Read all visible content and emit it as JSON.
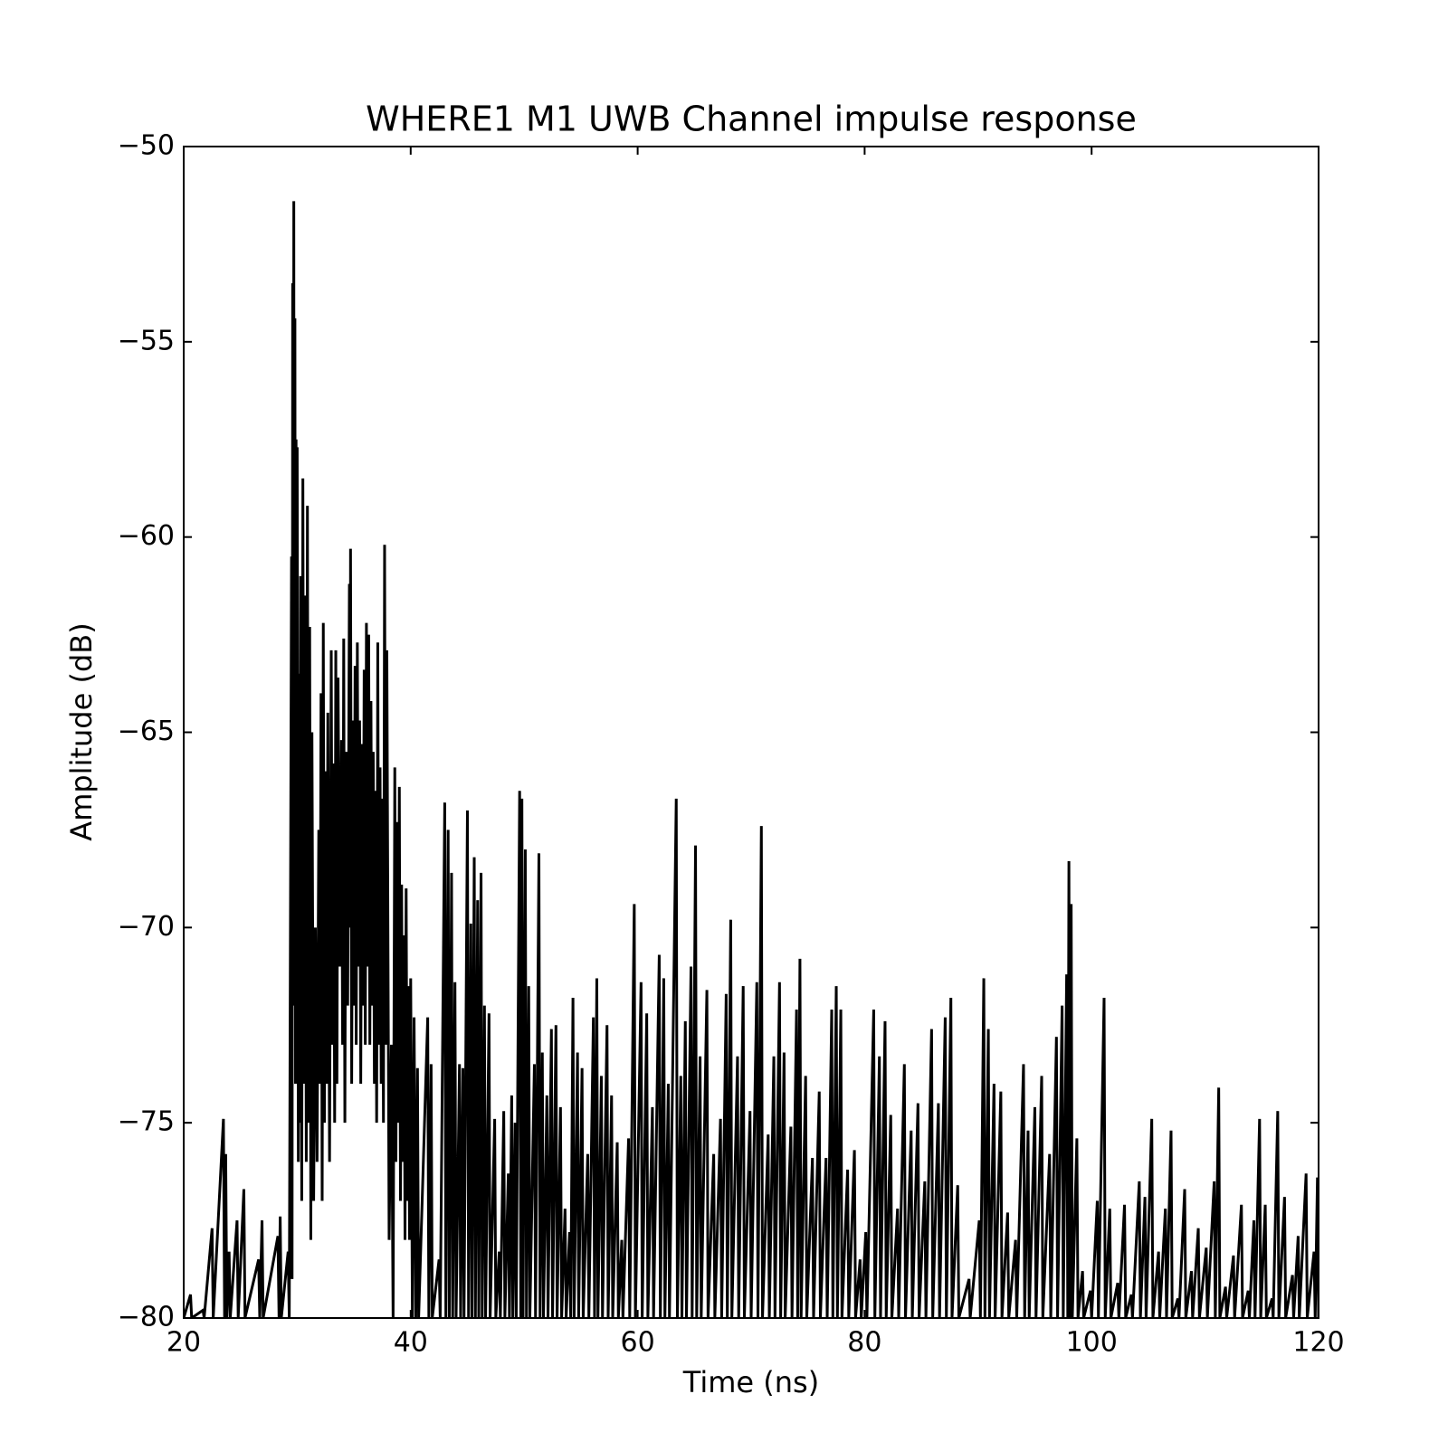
{
  "chart_data": {
    "type": "line",
    "title": "WHERE1 M1 UWB Channel impulse response",
    "x_label": "Time (ns)",
    "y_label": "Amplitude (dB)",
    "xlim": [
      20,
      120
    ],
    "ylim": [
      -80,
      -50
    ],
    "xticks": [
      20,
      40,
      60,
      80,
      100,
      120
    ],
    "yticks": [
      {
        "value": -50,
        "label": "−50"
      },
      {
        "value": -55,
        "label": "−55"
      },
      {
        "value": -60,
        "label": "−60"
      },
      {
        "value": -65,
        "label": "−65"
      },
      {
        "value": -70,
        "label": "−70"
      },
      {
        "value": -75,
        "label": "−75"
      },
      {
        "value": -80,
        "label": "−80"
      }
    ],
    "grid": false,
    "x": [
      20.0,
      20.6,
      20.7,
      21.7,
      21.8,
      22.5,
      22.6,
      23.5,
      23.6,
      23.7,
      23.8,
      24.0,
      24.1,
      24.7,
      24.8,
      25.3,
      25.4,
      26.6,
      26.7,
      26.9,
      27.0,
      28.3,
      28.4,
      28.5,
      28.6,
      29.2,
      29.3,
      29.5,
      29.55,
      29.6,
      29.65,
      29.7,
      29.75,
      29.8,
      29.85,
      29.9,
      29.95,
      30.0,
      30.1,
      30.2,
      30.25,
      30.3,
      30.4,
      30.5,
      30.6,
      30.7,
      30.8,
      30.9,
      31.0,
      31.1,
      31.2,
      31.3,
      31.45,
      31.6,
      31.75,
      31.9,
      32.0,
      32.1,
      32.2,
      32.3,
      32.4,
      32.5,
      32.6,
      32.7,
      32.85,
      33.0,
      33.1,
      33.2,
      33.3,
      33.4,
      33.5,
      33.6,
      33.75,
      33.9,
      34.0,
      34.1,
      34.2,
      34.3,
      34.45,
      34.6,
      34.65,
      34.7,
      34.8,
      34.9,
      35.0,
      35.1,
      35.2,
      35.3,
      35.4,
      35.5,
      35.6,
      35.7,
      35.8,
      35.9,
      36.0,
      36.1,
      36.2,
      36.3,
      36.4,
      36.5,
      36.6,
      36.7,
      36.8,
      36.9,
      37.0,
      37.1,
      37.2,
      37.3,
      37.4,
      37.5,
      37.6,
      37.7,
      37.8,
      37.9,
      38.1,
      38.3,
      38.45,
      38.6,
      38.7,
      38.8,
      38.9,
      39.0,
      39.1,
      39.2,
      39.3,
      39.4,
      39.5,
      39.6,
      39.7,
      39.8,
      39.9,
      40.0,
      40.15,
      40.3,
      40.45,
      40.6,
      40.7,
      41.5,
      41.6,
      41.8,
      41.9,
      42.5,
      42.6,
      43.0,
      43.1,
      43.3,
      43.4,
      43.6,
      43.7,
      43.9,
      44.0,
      44.3,
      44.4,
      44.6,
      44.7,
      45.0,
      45.1,
      45.3,
      45.4,
      45.6,
      45.7,
      45.9,
      46.0,
      46.2,
      46.3,
      46.5,
      46.6,
      46.9,
      47.0,
      47.4,
      47.5,
      47.8,
      47.9,
      48.2,
      48.3,
      48.6,
      48.7,
      48.9,
      49.0,
      49.2,
      49.3,
      49.6,
      49.7,
      49.8,
      49.9,
      50.1,
      50.2,
      50.4,
      50.5,
      50.9,
      51.0,
      51.3,
      51.4,
      51.6,
      51.7,
      52.0,
      52.1,
      52.4,
      52.5,
      52.8,
      52.9,
      53.2,
      53.3,
      53.6,
      53.7,
      54.0,
      54.1,
      54.3,
      54.4,
      54.7,
      54.8,
      55.1,
      55.2,
      55.6,
      55.7,
      56.1,
      56.2,
      56.4,
      56.5,
      56.8,
      56.9,
      57.3,
      57.4,
      57.7,
      57.8,
      58.2,
      58.3,
      58.6,
      58.7,
      59.2,
      59.3,
      59.7,
      59.8,
      60.3,
      60.4,
      60.8,
      60.9,
      61.3,
      61.4,
      61.9,
      62.0,
      62.3,
      62.4,
      62.7,
      62.8,
      63.4,
      63.5,
      63.8,
      63.9,
      64.2,
      64.3,
      64.7,
      64.8,
      65.1,
      65.2,
      65.5,
      65.6,
      66.1,
      66.2,
      66.7,
      66.8,
      67.3,
      67.4,
      67.8,
      67.9,
      68.2,
      68.3,
      68.8,
      68.9,
      69.3,
      69.4,
      69.9,
      70.0,
      70.5,
      70.6,
      70.9,
      71.0,
      71.5,
      71.6,
      72.0,
      72.1,
      72.5,
      72.6,
      72.9,
      73.0,
      73.5,
      73.6,
      74.0,
      74.1,
      74.3,
      74.4,
      74.8,
      74.9,
      75.4,
      75.5,
      76.0,
      76.1,
      76.6,
      76.7,
      77.1,
      77.2,
      77.5,
      77.6,
      77.9,
      78.0,
      78.5,
      78.6,
      79.1,
      79.2,
      79.6,
      79.7,
      80.1,
      80.2,
      80.8,
      80.9,
      81.3,
      81.4,
      81.8,
      81.9,
      82.3,
      82.4,
      82.9,
      83.0,
      83.5,
      83.6,
      84.1,
      84.2,
      84.7,
      84.8,
      85.3,
      85.4,
      85.9,
      86.0,
      86.5,
      86.6,
      87.1,
      87.2,
      87.6,
      87.7,
      88.2,
      88.3,
      89.2,
      89.3,
      90.1,
      90.2,
      90.5,
      90.6,
      90.9,
      91.0,
      91.4,
      91.5,
      92.0,
      92.1,
      92.6,
      92.7,
      93.3,
      93.4,
      94.0,
      94.1,
      94.4,
      94.5,
      95.0,
      95.1,
      95.6,
      95.7,
      96.3,
      96.4,
      96.9,
      97.0,
      97.4,
      97.5,
      97.8,
      97.9,
      98.0,
      98.1,
      98.2,
      98.3,
      98.7,
      98.8,
      99.2,
      99.3,
      99.9,
      100.0,
      100.5,
      100.6,
      101.1,
      101.2,
      101.6,
      101.7,
      102.3,
      102.4,
      102.9,
      103.0,
      103.5,
      103.6,
      104.2,
      104.3,
      104.7,
      104.8,
      105.3,
      105.4,
      105.9,
      106.0,
      106.5,
      106.6,
      107.0,
      107.1,
      107.6,
      107.7,
      108.2,
      108.3,
      108.8,
      108.9,
      109.4,
      109.5,
      110.1,
      110.2,
      110.8,
      110.9,
      111.2,
      111.3,
      111.8,
      111.9,
      112.5,
      112.6,
      113.2,
      113.3,
      113.8,
      113.9,
      114.3,
      114.4,
      114.8,
      114.9,
      115.3,
      115.4,
      115.9,
      116.0,
      116.4,
      116.5,
      117.0,
      117.1,
      117.7,
      117.8,
      118.2,
      118.3,
      118.9,
      119.0,
      119.6,
      119.7,
      119.9,
      120.0
    ],
    "series": [
      {
        "color": "#000000",
        "values": [
          -80,
          -79.4,
          -80,
          -79.8,
          -80,
          -77.7,
          -80,
          -74.9,
          -80,
          -75.8,
          -80,
          -78.3,
          -80,
          -77.5,
          -80,
          -76.7,
          -80,
          -78.5,
          -80,
          -77.5,
          -80,
          -77.9,
          -80,
          -77.4,
          -80,
          -78.3,
          -80,
          -60.5,
          -79,
          -53.5,
          -70,
          -51.4,
          -72,
          -54.4,
          -74,
          -57.5,
          -72,
          -57.7,
          -76,
          -63.5,
          -75,
          -61,
          -77,
          -58.5,
          -74,
          -61.5,
          -76,
          -59.2,
          -75,
          -62.3,
          -78,
          -65,
          -77,
          -70,
          -76,
          -67.5,
          -74,
          -64,
          -77,
          -62.2,
          -75,
          -66,
          -74,
          -64.5,
          -76,
          -62.9,
          -73,
          -65.8,
          -75,
          -62.9,
          -74,
          -63.6,
          -71,
          -65.2,
          -73,
          -62.6,
          -75,
          -65.5,
          -72,
          -61.2,
          -70,
          -60.3,
          -74,
          -64.7,
          -72,
          -63.3,
          -73,
          -62.7,
          -71,
          -64.7,
          -74,
          -65.3,
          -72,
          -63.4,
          -73,
          -62.2,
          -71,
          -62.5,
          -73,
          -64.2,
          -72,
          -65.5,
          -74,
          -66.5,
          -75,
          -62.7,
          -73,
          -65.9,
          -74,
          -66.7,
          -75,
          -60.2,
          -73,
          -62.9,
          -78,
          -73,
          -80,
          -65.9,
          -76,
          -67.3,
          -75,
          -66.4,
          -77,
          -68.9,
          -76,
          -70.2,
          -78,
          -69,
          -77,
          -71.5,
          -78,
          -71.3,
          -80,
          -72.3,
          -80,
          -73.6,
          -80,
          -72.3,
          -80,
          -73.5,
          -80,
          -78.5,
          -80,
          -66.8,
          -80,
          -67.5,
          -80,
          -68.6,
          -80,
          -71.4,
          -80,
          -73.5,
          -80,
          -73.6,
          -80,
          -67,
          -80,
          -69.9,
          -80,
          -68.2,
          -80,
          -69.3,
          -80,
          -68.6,
          -80,
          -72,
          -80,
          -72.2,
          -80,
          -74.9,
          -80,
          -78.3,
          -80,
          -74.7,
          -80,
          -76.3,
          -80,
          -74.3,
          -80,
          -75,
          -80,
          -66.5,
          -80,
          -66.7,
          -80,
          -68,
          -80,
          -71.5,
          -80,
          -73.5,
          -80,
          -68.1,
          -80,
          -73.2,
          -80,
          -74.3,
          -80,
          -72.6,
          -80,
          -72.5,
          -80,
          -74.6,
          -80,
          -77.2,
          -80,
          -77.8,
          -80,
          -71.8,
          -80,
          -73.2,
          -80,
          -73.6,
          -80,
          -75.8,
          -80,
          -72.3,
          -80,
          -71.3,
          -80,
          -73.8,
          -80,
          -72.5,
          -80,
          -74.3,
          -80,
          -75.5,
          -80,
          -78,
          -80,
          -75.4,
          -80,
          -69.4,
          -80,
          -71.4,
          -80,
          -72.2,
          -80,
          -74.6,
          -80,
          -70.7,
          -80,
          -71.3,
          -80,
          -74,
          -80,
          -66.7,
          -80,
          -73.8,
          -80,
          -72.4,
          -80,
          -71,
          -80,
          -67.9,
          -80,
          -73.3,
          -80,
          -71.6,
          -80,
          -75.8,
          -80,
          -74.9,
          -80,
          -71.7,
          -80,
          -69.8,
          -80,
          -73.3,
          -80,
          -71.5,
          -80,
          -74.7,
          -80,
          -71.4,
          -80,
          -67.4,
          -80,
          -75.3,
          -80,
          -73.3,
          -80,
          -71.4,
          -80,
          -73.2,
          -80,
          -75.1,
          -80,
          -72.1,
          -80,
          -70.8,
          -80,
          -73.8,
          -80,
          -75.9,
          -80,
          -74.2,
          -80,
          -75.9,
          -80,
          -72.1,
          -80,
          -71.5,
          -80,
          -72.1,
          -80,
          -76.2,
          -80,
          -75.7,
          -80,
          -78.5,
          -80,
          -77.8,
          -80,
          -72.1,
          -80,
          -73.3,
          -80,
          -72.4,
          -80,
          -74.8,
          -80,
          -77.2,
          -80,
          -73.5,
          -80,
          -75.2,
          -80,
          -74.5,
          -80,
          -76.5,
          -80,
          -72.6,
          -80,
          -74.5,
          -80,
          -72.3,
          -80,
          -71.8,
          -80,
          -76.6,
          -80,
          -79,
          -80,
          -77.5,
          -80,
          -71.3,
          -80,
          -72.6,
          -80,
          -74,
          -80,
          -74.2,
          -80,
          -77.3,
          -80,
          -78,
          -80,
          -73.5,
          -80,
          -75.2,
          -80,
          -74.6,
          -80,
          -73.8,
          -80,
          -75.8,
          -80,
          -72.8,
          -80,
          -72,
          -80,
          -71.2,
          -80,
          -68.3,
          -80,
          -69.4,
          -80,
          -75.4,
          -80,
          -78.8,
          -80,
          -79.3,
          -80,
          -77,
          -80,
          -71.8,
          -80,
          -77.2,
          -80,
          -79.1,
          -80,
          -77.1,
          -80,
          -79.4,
          -80,
          -76.5,
          -80,
          -76.9,
          -80,
          -74.9,
          -80,
          -78.3,
          -80,
          -77.2,
          -80,
          -75.2,
          -80,
          -79.5,
          -80,
          -76.7,
          -80,
          -78.8,
          -80,
          -77.7,
          -80,
          -78.2,
          -80,
          -76.5,
          -80,
          -74.1,
          -80,
          -79.2,
          -80,
          -78.4,
          -80,
          -77.1,
          -80,
          -79.3,
          -80,
          -77.5,
          -80,
          -74.9,
          -80,
          -77.1,
          -80,
          -79.5,
          -80,
          -74.7,
          -80,
          -76.9,
          -80,
          -78.9,
          -80,
          -77.9,
          -80,
          -76.3,
          -80,
          -78.3,
          -80,
          -76.4,
          -80
        ]
      }
    ]
  }
}
